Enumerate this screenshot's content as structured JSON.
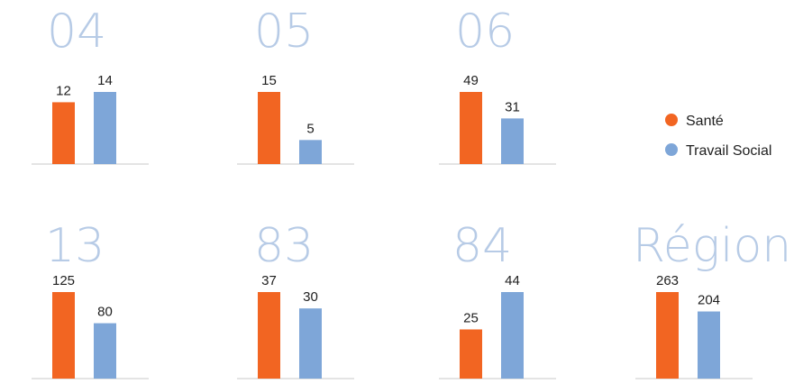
{
  "legend": [
    {
      "name": "Santé",
      "color": "#F26522"
    },
    {
      "name": "Travail Social",
      "color": "#7EA6D8"
    }
  ],
  "title_color": "#B7CBE6",
  "chart_data": [
    {
      "type": "bar",
      "title": "04",
      "categories": [
        "Santé",
        "Travail Social"
      ],
      "values": [
        12,
        14
      ]
    },
    {
      "type": "bar",
      "title": "05",
      "categories": [
        "Santé",
        "Travail Social"
      ],
      "values": [
        15,
        5
      ]
    },
    {
      "type": "bar",
      "title": "06",
      "categories": [
        "Santé",
        "Travail Social"
      ],
      "values": [
        49,
        31
      ]
    },
    {
      "type": "bar",
      "title": "13",
      "categories": [
        "Santé",
        "Travail Social"
      ],
      "values": [
        125,
        80
      ]
    },
    {
      "type": "bar",
      "title": "83",
      "categories": [
        "Santé",
        "Travail Social"
      ],
      "values": [
        37,
        30
      ]
    },
    {
      "type": "bar",
      "title": "84",
      "categories": [
        "Santé",
        "Travail Social"
      ],
      "values": [
        25,
        44
      ]
    },
    {
      "type": "bar",
      "title": "Région",
      "categories": [
        "Santé",
        "Travail Social"
      ],
      "values": [
        263,
        204
      ]
    }
  ]
}
